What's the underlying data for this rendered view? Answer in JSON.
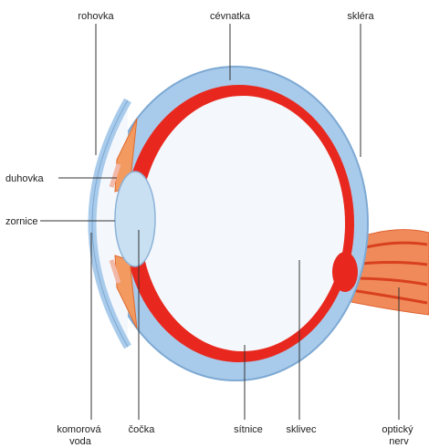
{
  "labels": [
    {
      "lines": [
        "rohovka"
      ]
    },
    {
      "lines": [
        "cévnatka"
      ]
    },
    {
      "lines": [
        "skléra"
      ]
    },
    {
      "lines": [
        "duhovka"
      ]
    },
    {
      "lines": [
        "zornice"
      ]
    },
    {
      "lines": [
        "komorová",
        "voda"
      ]
    },
    {
      "lines": [
        "čočka"
      ]
    },
    {
      "lines": [
        "sítnice"
      ]
    },
    {
      "lines": [
        "sklivec"
      ]
    },
    {
      "lines": [
        "optický",
        "nerv"
      ]
    }
  ]
}
